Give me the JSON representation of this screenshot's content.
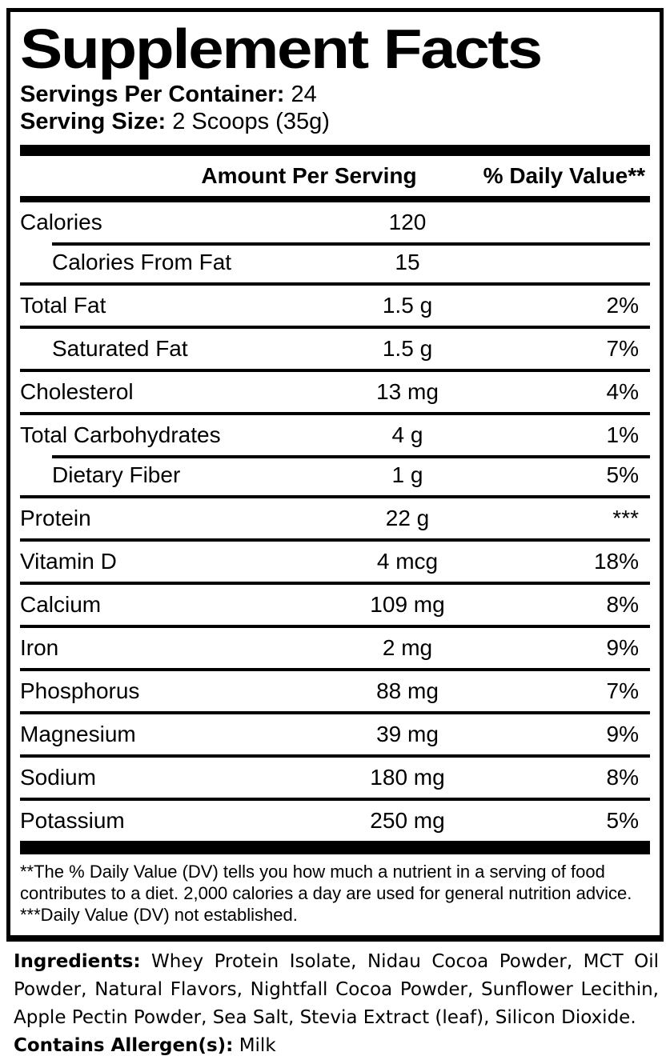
{
  "label": {
    "title": "Supplement Facts",
    "servings_per_container": {
      "label": "Servings Per Container:",
      "value": "24"
    },
    "serving_size": {
      "label": "Serving Size:",
      "value": "2 Scoops (35g)"
    },
    "columns": {
      "amount": "Amount Per Serving",
      "daily_value": "% Daily Value**"
    },
    "rows": [
      {
        "name": "Calories",
        "amount": "120",
        "dv": ""
      },
      {
        "name": "Calories From Fat",
        "amount": "15",
        "dv": ""
      },
      {
        "name": "Total Fat",
        "amount": "1.5 g",
        "dv": "2%"
      },
      {
        "name": "Saturated Fat",
        "amount": "1.5 g",
        "dv": "7%"
      },
      {
        "name": "Cholesterol",
        "amount": "13 mg",
        "dv": "4%"
      },
      {
        "name": "Total Carbohydrates",
        "amount": "4 g",
        "dv": "1%"
      },
      {
        "name": "Dietary Fiber",
        "amount": "1 g",
        "dv": "5%"
      },
      {
        "name": "Protein",
        "amount": "22 g",
        "dv": "***"
      },
      {
        "name": "Vitamin D",
        "amount": "4 mcg",
        "dv": "18%"
      },
      {
        "name": "Calcium",
        "amount": "109 mg",
        "dv": "8%"
      },
      {
        "name": "Iron",
        "amount": "2 mg",
        "dv": "9%"
      },
      {
        "name": "Phosphorus",
        "amount": "88 mg",
        "dv": "7%"
      },
      {
        "name": "Magnesium",
        "amount": "39 mg",
        "dv": "9%"
      },
      {
        "name": "Sodium",
        "amount": "180 mg",
        "dv": "8%"
      },
      {
        "name": "Potassium",
        "amount": "250 mg",
        "dv": "5%"
      }
    ],
    "footnotes": {
      "dv_note": "**The % Daily Value (DV) tells you how much a nutrient in a serving of food contributes to a diet. 2,000 calories a day are used for general nutrition advice.",
      "not_established_note": "***Daily Value (DV) not established."
    }
  },
  "ingredients": {
    "label": "Ingredients:",
    "text": " Whey Protein Isolate, Nidau Cocoa Powder, MCT Oil Powder, Natural Flavors, Nightfall Cocoa Powder, Sunflower Lecithin, Apple Pectin Powder, Sea Salt, Stevia Extract (leaf), Silicon Dioxide.",
    "allergen_label": "Contains Allergen(s):",
    "allergen_value": " Milk"
  },
  "colors": {
    "ink": "#000000",
    "paper": "#ffffff"
  }
}
